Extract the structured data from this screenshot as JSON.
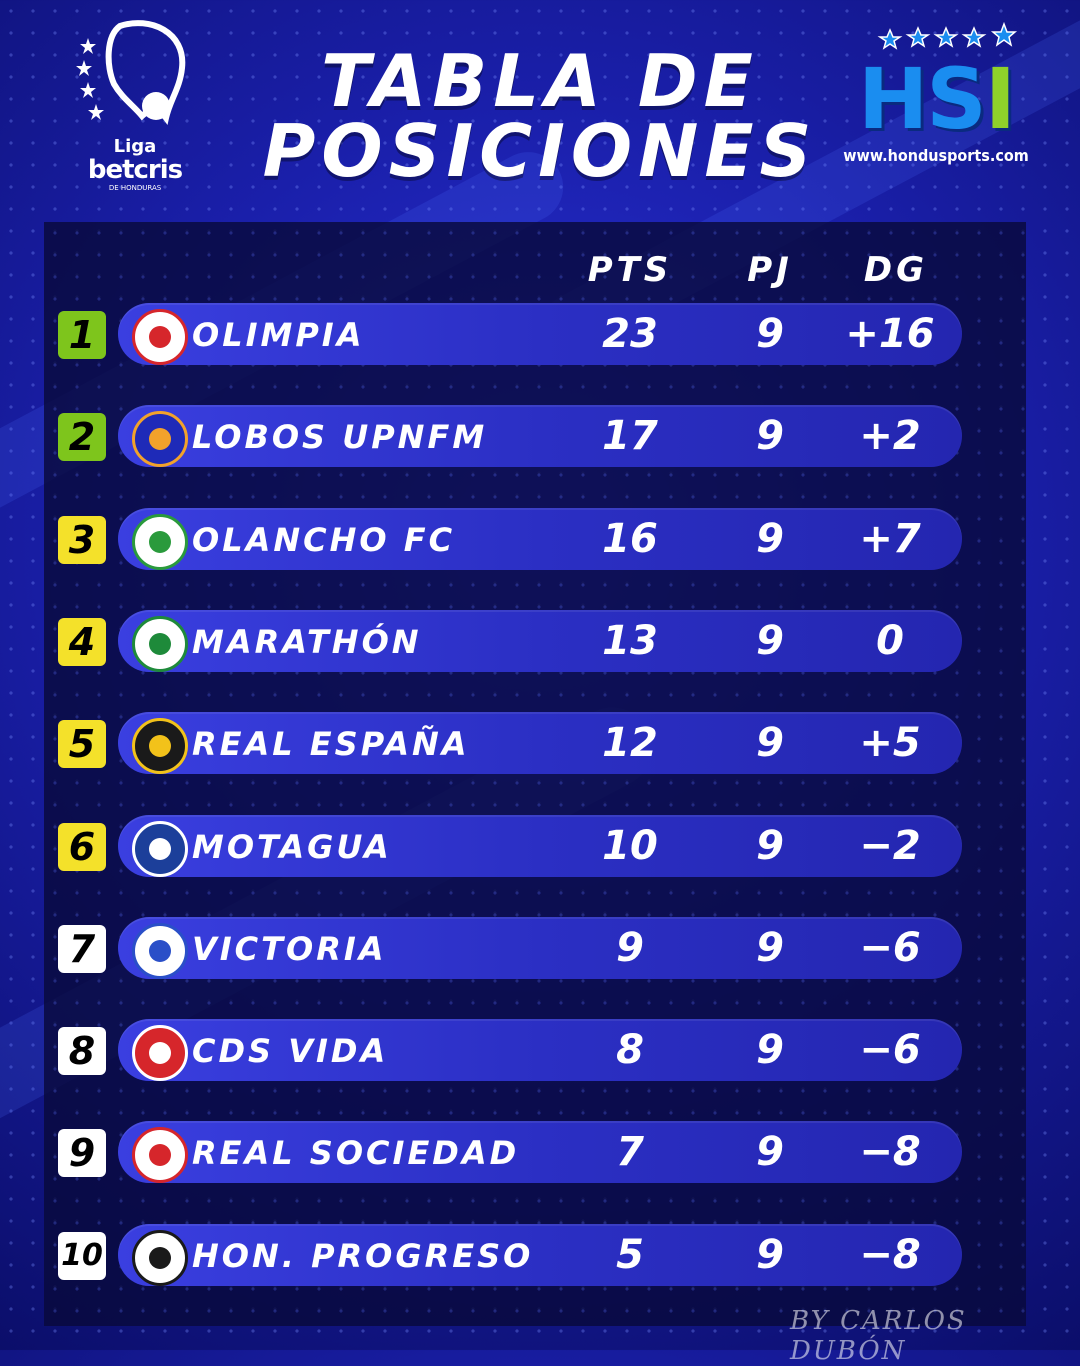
{
  "header": {
    "title_line1": "TABLA DE",
    "title_line2": "POSICIONES",
    "league_logo": {
      "line1": "Liga",
      "line2": "betcris",
      "line3": "DE HONDURAS"
    },
    "brand_logo": {
      "h": "H",
      "s": "S",
      "i": "I",
      "url": "www.hondusports.com"
    }
  },
  "table": {
    "columns": [
      "PTS",
      "PJ",
      "DG"
    ],
    "rows": [
      {
        "rank": "1",
        "team": "OLIMPIA",
        "pts": "23",
        "pj": "9",
        "dg": "+16",
        "rank_color": "#7ec51c",
        "badge_color": "#ffffff",
        "badge_accent": "#d6262b"
      },
      {
        "rank": "2",
        "team": "LOBOS UPNFM",
        "pts": "17",
        "pj": "9",
        "dg": "+2",
        "rank_color": "#7ec51c",
        "badge_color": "#1e2ab8",
        "badge_accent": "#f2a22b"
      },
      {
        "rank": "3",
        "team": "OLANCHO FC",
        "pts": "16",
        "pj": "9",
        "dg": "+7",
        "rank_color": "#f4e12a",
        "badge_color": "#ffffff",
        "badge_accent": "#2a9a3c"
      },
      {
        "rank": "4",
        "team": "MARATHÓN",
        "pts": "13",
        "pj": "9",
        "dg": "0",
        "rank_color": "#f4e12a",
        "badge_color": "#ffffff",
        "badge_accent": "#1e8a3a"
      },
      {
        "rank": "5",
        "team": "REAL ESPAÑA",
        "pts": "12",
        "pj": "9",
        "dg": "+5",
        "rank_color": "#f4e12a",
        "badge_color": "#1a1a1a",
        "badge_accent": "#f2c21a"
      },
      {
        "rank": "6",
        "team": "MOTAGUA",
        "pts": "10",
        "pj": "9",
        "dg": "−2",
        "rank_color": "#f4e12a",
        "badge_color": "#1c3f9a",
        "badge_accent": "#ffffff"
      },
      {
        "rank": "7",
        "team": "VICTORIA",
        "pts": "9",
        "pj": "9",
        "dg": "−6",
        "rank_color": "#ffffff",
        "badge_color": "#ffffff",
        "badge_accent": "#2a4fc8"
      },
      {
        "rank": "8",
        "team": "CDS VIDA",
        "pts": "8",
        "pj": "9",
        "dg": "−6",
        "rank_color": "#ffffff",
        "badge_color": "#d6262b",
        "badge_accent": "#ffffff"
      },
      {
        "rank": "9",
        "team": "REAL SOCIEDAD",
        "pts": "7",
        "pj": "9",
        "dg": "−8",
        "rank_color": "#ffffff",
        "badge_color": "#ffffff",
        "badge_accent": "#d6262b"
      },
      {
        "rank": "10",
        "team": "HON. PROGRESO",
        "pts": "5",
        "pj": "9",
        "dg": "−8",
        "rank_color": "#ffffff",
        "badge_color": "#ffffff",
        "badge_accent": "#1a1a1a"
      }
    ]
  },
  "credit": "BY CARLOS DUBÓN"
}
